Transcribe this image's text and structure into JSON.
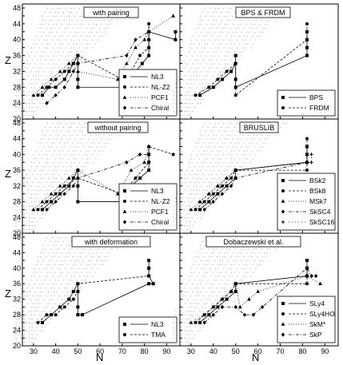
{
  "figure": {
    "xlabel": "N",
    "ylabel": "Z",
    "xticks": [
      30,
      40,
      50,
      60,
      70,
      80,
      90
    ],
    "yticks": [
      20,
      22,
      24,
      26,
      28,
      30,
      32,
      34,
      36,
      38,
      40,
      42,
      44,
      46,
      48
    ],
    "xlim": [
      25,
      96
    ],
    "ylim": [
      20,
      49
    ]
  },
  "chart_data": [
    {
      "type": "scatter",
      "title": "with pairing",
      "legend_position": "bottom-right",
      "series": [
        {
          "name": "NL3",
          "marker": "square",
          "dash": "none",
          "points": [
            [
              34,
              26
            ],
            [
              37,
              28
            ],
            [
              40,
              28
            ],
            [
              44,
              30
            ],
            [
              46,
              32
            ],
            [
              48,
              34
            ],
            [
              50,
              36
            ],
            [
              50,
              34
            ],
            [
              50,
              30
            ],
            [
              50,
              28
            ],
            [
              70,
              28
            ],
            [
              72,
              30
            ],
            [
              76,
              32
            ],
            [
              79,
              34
            ],
            [
              82,
              36
            ],
            [
              82,
              38
            ],
            [
              82,
              40
            ],
            [
              82,
              42
            ],
            [
              94,
              40
            ],
            [
              94,
              42
            ]
          ]
        },
        {
          "name": "NL-Z2",
          "marker": "circle",
          "dash": "3,2",
          "points": [
            [
              32,
              26
            ],
            [
              36,
              28
            ],
            [
              40,
              30
            ],
            [
              44,
              32
            ],
            [
              48,
              34
            ],
            [
              50,
              36
            ],
            [
              70,
              30
            ],
            [
              74,
              32
            ],
            [
              78,
              36
            ],
            [
              82,
              38
            ],
            [
              82,
              40
            ],
            [
              82,
              44
            ]
          ]
        },
        {
          "name": "PCF1",
          "marker": "triangle",
          "dash": "1,2",
          "points": [
            [
              30,
              26
            ],
            [
              34,
              28
            ],
            [
              38,
              30
            ],
            [
              42,
              32
            ],
            [
              46,
              34
            ],
            [
              50,
              36
            ],
            [
              50,
              32
            ],
            [
              68,
              30
            ],
            [
              72,
              34
            ],
            [
              76,
              38
            ],
            [
              80,
              40
            ],
            [
              82,
              42
            ],
            [
              93,
              46
            ]
          ]
        },
        {
          "name": "Chiral",
          "marker": "diamond",
          "dash": "4,2,1,2",
          "points": [
            [
              36,
              24
            ],
            [
              40,
              26
            ],
            [
              44,
              28
            ],
            [
              48,
              32
            ],
            [
              50,
              34
            ],
            [
              72,
              36
            ],
            [
              76,
              40
            ],
            [
              82,
              42
            ],
            [
              82,
              44
            ]
          ]
        }
      ]
    },
    {
      "type": "scatter",
      "title": "BPS & FRDM",
      "legend_position": "bottom-right",
      "series": [
        {
          "name": "BPS",
          "marker": "square",
          "dash": "none",
          "points": [
            [
              34,
              26
            ],
            [
              40,
              28
            ],
            [
              44,
              30
            ],
            [
              48,
              32
            ],
            [
              50,
              34
            ],
            [
              50,
              36
            ],
            [
              50,
              30
            ],
            [
              50,
              28
            ],
            [
              82,
              36
            ],
            [
              82,
              38
            ],
            [
              82,
              40
            ],
            [
              82,
              42
            ]
          ]
        },
        {
          "name": "FRDM",
          "marker": "circle",
          "dash": "3,2",
          "points": [
            [
              32,
              26
            ],
            [
              38,
              28
            ],
            [
              42,
              30
            ],
            [
              46,
              32
            ],
            [
              50,
              34
            ],
            [
              50,
              26
            ],
            [
              82,
              40
            ],
            [
              82,
              42
            ],
            [
              82,
              44
            ]
          ]
        }
      ]
    },
    {
      "type": "scatter",
      "title": "without pairing",
      "legend_position": "bottom-right",
      "series": [
        {
          "name": "NL3",
          "marker": "square",
          "dash": "none",
          "points": [
            [
              34,
              26
            ],
            [
              38,
              28
            ],
            [
              42,
              30
            ],
            [
              46,
              32
            ],
            [
              48,
              34
            ],
            [
              50,
              36
            ],
            [
              50,
              32
            ],
            [
              50,
              28
            ],
            [
              70,
              28
            ],
            [
              74,
              32
            ],
            [
              78,
              34
            ],
            [
              82,
              36
            ],
            [
              82,
              38
            ],
            [
              82,
              40
            ]
          ]
        },
        {
          "name": "NL-Z2",
          "marker": "circle",
          "dash": "3,2",
          "points": [
            [
              32,
              26
            ],
            [
              36,
              28
            ],
            [
              40,
              30
            ],
            [
              44,
              32
            ],
            [
              50,
              34
            ],
            [
              70,
              30
            ],
            [
              76,
              34
            ],
            [
              82,
              38
            ],
            [
              82,
              40
            ],
            [
              82,
              42
            ],
            [
              93,
              40
            ]
          ]
        },
        {
          "name": "PCF1",
          "marker": "triangle",
          "dash": "1,2",
          "points": [
            [
              30,
              26
            ],
            [
              34,
              28
            ],
            [
              38,
              30
            ],
            [
              42,
              32
            ],
            [
              46,
              34
            ],
            [
              50,
              36
            ],
            [
              68,
              30
            ],
            [
              74,
              36
            ],
            [
              80,
              38
            ],
            [
              82,
              42
            ]
          ]
        },
        {
          "name": "Chiral",
          "marker": "diamond",
          "dash": "4,2,1,2",
          "points": [
            [
              36,
              26
            ],
            [
              40,
              28
            ],
            [
              44,
              30
            ],
            [
              48,
              32
            ],
            [
              50,
              34
            ],
            [
              72,
              38
            ],
            [
              78,
              40
            ],
            [
              82,
              40
            ],
            [
              82,
              42
            ]
          ]
        }
      ]
    },
    {
      "type": "scatter",
      "title": "BRUSLIB",
      "legend_position": "bottom-right",
      "series": [
        {
          "name": "BSk2",
          "marker": "square",
          "dash": "none",
          "points": [
            [
              34,
              26
            ],
            [
              38,
              28
            ],
            [
              42,
              30
            ],
            [
              46,
              32
            ],
            [
              50,
              34
            ],
            [
              50,
              36
            ],
            [
              82,
              38
            ],
            [
              82,
              40
            ],
            [
              82,
              42
            ]
          ]
        },
        {
          "name": "BSk8",
          "marker": "circle",
          "dash": "3,2",
          "points": [
            [
              32,
              26
            ],
            [
              36,
              28
            ],
            [
              40,
              30
            ],
            [
              44,
              32
            ],
            [
              48,
              34
            ],
            [
              50,
              36
            ],
            [
              82,
              36
            ],
            [
              82,
              40
            ],
            [
              82,
              44
            ]
          ]
        },
        {
          "name": "MSk7",
          "marker": "triangle",
          "dash": "1,2",
          "points": [
            [
              30,
              26
            ],
            [
              34,
              28
            ],
            [
              38,
              30
            ],
            [
              42,
              32
            ],
            [
              46,
              34
            ],
            [
              50,
              36
            ],
            [
              82,
              38
            ],
            [
              82,
              42
            ]
          ]
        },
        {
          "name": "SkSC4",
          "marker": "diamond",
          "dash": "4,2,1,2",
          "points": [
            [
              36,
              26
            ],
            [
              40,
              28
            ],
            [
              44,
              30
            ],
            [
              48,
              32
            ],
            [
              50,
              34
            ],
            [
              82,
              38
            ],
            [
              82,
              40
            ],
            [
              82,
              42
            ]
          ]
        },
        {
          "name": "SkSC16",
          "marker": "plus",
          "dash": "1,3",
          "points": [
            [
              34,
              28
            ],
            [
              38,
              30
            ],
            [
              42,
              32
            ],
            [
              46,
              34
            ],
            [
              50,
              36
            ],
            [
              84,
              38
            ],
            [
              84,
              40
            ]
          ]
        }
      ]
    },
    {
      "type": "scatter",
      "title": "with deformation",
      "legend_position": "bottom-right",
      "series": [
        {
          "name": "NL3",
          "marker": "square",
          "dash": "none",
          "points": [
            [
              34,
              26
            ],
            [
              38,
              28
            ],
            [
              42,
              30
            ],
            [
              46,
              32
            ],
            [
              48,
              34
            ],
            [
              50,
              36
            ],
            [
              50,
              34
            ],
            [
              50,
              30
            ],
            [
              50,
              28
            ],
            [
              52,
              28
            ],
            [
              82,
              36
            ],
            [
              84,
              36
            ],
            [
              82,
              38
            ],
            [
              82,
              40
            ],
            [
              82,
              42
            ]
          ]
        },
        {
          "name": "TMA",
          "marker": "circle",
          "dash": "3,2",
          "points": [
            [
              32,
              26
            ],
            [
              36,
              28
            ],
            [
              40,
              28
            ],
            [
              44,
              30
            ],
            [
              48,
              32
            ],
            [
              50,
              34
            ],
            [
              50,
              36
            ],
            [
              82,
              38
            ],
            [
              82,
              40
            ]
          ]
        }
      ]
    },
    {
      "type": "scatter",
      "title": "Dobaczewski  et al.",
      "legend_position": "bottom-right",
      "series": [
        {
          "name": "SLy4",
          "marker": "square",
          "dash": "none",
          "points": [
            [
              34,
              26
            ],
            [
              38,
              28
            ],
            [
              42,
              30
            ],
            [
              46,
              32
            ],
            [
              50,
              34
            ],
            [
              50,
              36
            ],
            [
              82,
              38
            ],
            [
              82,
              40
            ],
            [
              82,
              42
            ]
          ]
        },
        {
          "name": "SLy4HO",
          "marker": "circle",
          "dash": "3,2",
          "points": [
            [
              32,
              26
            ],
            [
              36,
              28
            ],
            [
              40,
              30
            ],
            [
              44,
              32
            ],
            [
              48,
              34
            ],
            [
              50,
              36
            ],
            [
              82,
              36
            ],
            [
              82,
              40
            ]
          ]
        },
        {
          "name": "SkM*",
          "marker": "triangle",
          "dash": "1,2",
          "points": [
            [
              30,
              26
            ],
            [
              36,
              28
            ],
            [
              40,
              30
            ],
            [
              44,
              32
            ],
            [
              48,
              34
            ],
            [
              50,
              36
            ],
            [
              52,
              30
            ],
            [
              56,
              32
            ],
            [
              60,
              34
            ],
            [
              82,
              38
            ],
            [
              88,
              36
            ]
          ]
        },
        {
          "name": "SkP",
          "marker": "diamond",
          "dash": "4,2,1,2",
          "points": [
            [
              36,
              26
            ],
            [
              40,
              28
            ],
            [
              44,
              30
            ],
            [
              50,
              30
            ],
            [
              54,
              28
            ],
            [
              58,
              28
            ],
            [
              62,
              30
            ],
            [
              82,
              40
            ],
            [
              84,
              38
            ],
            [
              86,
              38
            ]
          ]
        }
      ]
    }
  ]
}
